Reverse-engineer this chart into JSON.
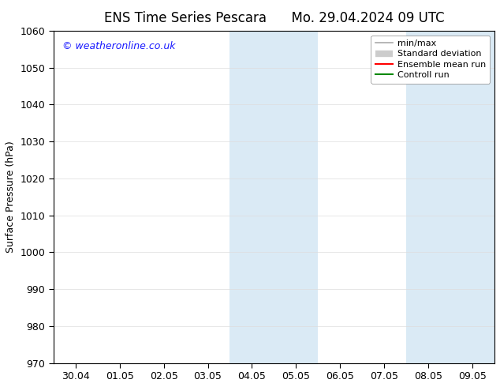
{
  "title_left": "ENS Time Series Pescara",
  "title_right": "Mo. 29.04.2024 09 UTC",
  "ylabel": "Surface Pressure (hPa)",
  "ylim": [
    970,
    1060
  ],
  "yticks": [
    970,
    980,
    990,
    1000,
    1010,
    1020,
    1030,
    1040,
    1050,
    1060
  ],
  "xlim_start": -0.5,
  "xlim_end": 9.5,
  "xtick_labels": [
    "30.04",
    "01.05",
    "02.05",
    "03.05",
    "04.05",
    "05.05",
    "06.05",
    "07.05",
    "08.05",
    "09.05"
  ],
  "xtick_positions": [
    0,
    1,
    2,
    3,
    4,
    5,
    6,
    7,
    8,
    9
  ],
  "shade_bands": [
    {
      "xmin": 3.5,
      "xmax": 4.5
    },
    {
      "xmin": 4.5,
      "xmax": 5.5
    },
    {
      "xmin": 7.5,
      "xmax": 8.5
    },
    {
      "xmin": 8.5,
      "xmax": 9.5
    }
  ],
  "shade_color": "#daeaf5",
  "watermark": "© weatheronline.co.uk",
  "watermark_color": "#1a1aff",
  "legend_entries": [
    "min/max",
    "Standard deviation",
    "Ensemble mean run",
    "Controll run"
  ],
  "legend_line_colors": [
    "#aaaaaa",
    "#cccccc",
    "#ff0000",
    "#008800"
  ],
  "background_color": "#ffffff",
  "axes_bg_color": "#ffffff",
  "grid_color": "#dddddd",
  "title_fontsize": 12,
  "label_fontsize": 9,
  "tick_fontsize": 9,
  "legend_fontsize": 8
}
